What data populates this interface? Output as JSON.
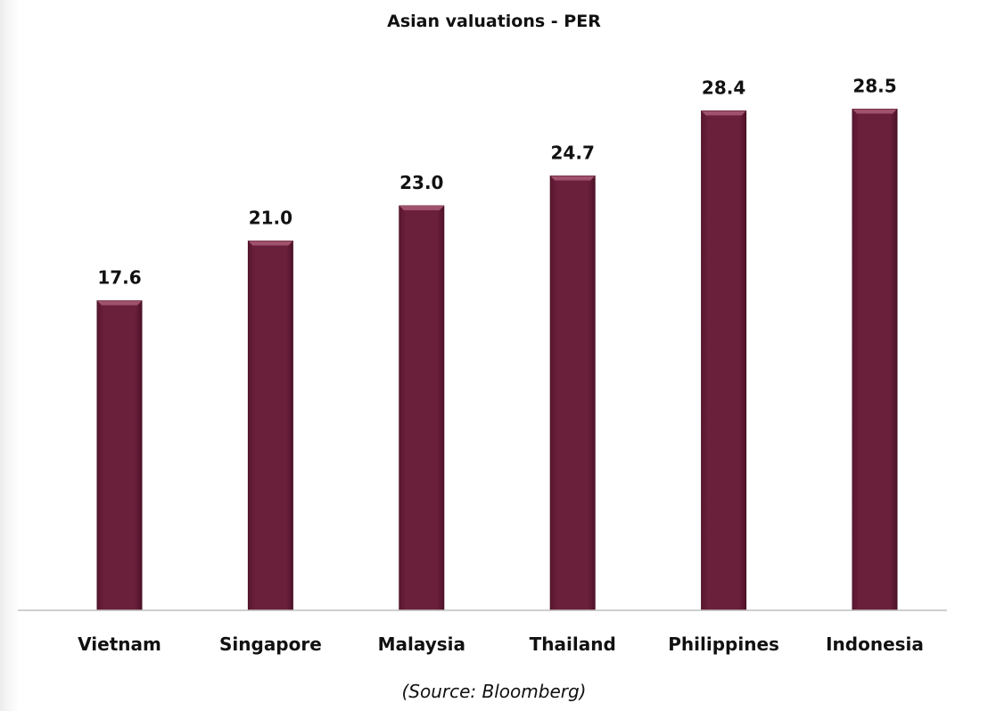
{
  "chart_data": {
    "type": "bar",
    "title": "Asian valuations - PER",
    "categories": [
      "Vietnam",
      "Singapore",
      "Malaysia",
      "Thailand",
      "Philippines",
      "Indonesia"
    ],
    "values": [
      17.6,
      21.0,
      23.0,
      24.7,
      28.4,
      28.5
    ],
    "data_labels": [
      "17.6",
      "21.0",
      "23.0",
      "24.7",
      "28.4",
      "28.5"
    ],
    "ylim": [
      0,
      30
    ],
    "grid": false,
    "legend": "none",
    "bar_color": "#6a1f3b",
    "bar_highlight_color": "#a0526c",
    "axis_color": "#bfbfbf"
  },
  "source_note": "(Source: Bloomberg)"
}
